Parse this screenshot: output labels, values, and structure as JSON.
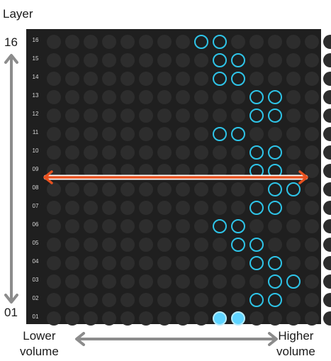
{
  "labels": {
    "title": "Layer",
    "top_number": "16",
    "bottom_number": "01",
    "lower_volume": [
      "Lower",
      "volume"
    ],
    "higher_volume": [
      "Higher",
      "volume"
    ]
  },
  "grid": {
    "columns": 16,
    "row_labels": [
      "16",
      "15",
      "14",
      "13",
      "12",
      "11",
      "10",
      "09",
      "08",
      "07",
      "06",
      "05",
      "04",
      "03",
      "02",
      "01"
    ],
    "active": [
      {
        "row": "16",
        "cols": [
          8,
          9
        ]
      },
      {
        "row": "15",
        "cols": [
          9,
          10
        ]
      },
      {
        "row": "14",
        "cols": [
          9,
          10
        ]
      },
      {
        "row": "13",
        "cols": [
          11,
          12
        ]
      },
      {
        "row": "12",
        "cols": [
          11,
          12
        ]
      },
      {
        "row": "11",
        "cols": [
          9,
          10
        ]
      },
      {
        "row": "10",
        "cols": [
          11,
          12
        ]
      },
      {
        "row": "09",
        "cols": [
          11,
          12
        ]
      },
      {
        "row": "08",
        "cols": [
          12,
          13
        ]
      },
      {
        "row": "07",
        "cols": [
          11,
          12
        ]
      },
      {
        "row": "06",
        "cols": [
          9,
          10
        ]
      },
      {
        "row": "05",
        "cols": [
          10,
          11
        ]
      },
      {
        "row": "04",
        "cols": [
          11,
          12
        ]
      },
      {
        "row": "03",
        "cols": [
          12,
          13
        ]
      },
      {
        "row": "02",
        "cols": [
          11,
          12
        ]
      },
      {
        "row": "01",
        "cols": [
          9,
          10
        ],
        "filled": true
      }
    ]
  },
  "colors": {
    "active_ring": "#2ec4e8",
    "filled_cell": "#5fd4ff",
    "arrow_red": "#e8511f",
    "arrow_gray": "#8c8c8c"
  }
}
